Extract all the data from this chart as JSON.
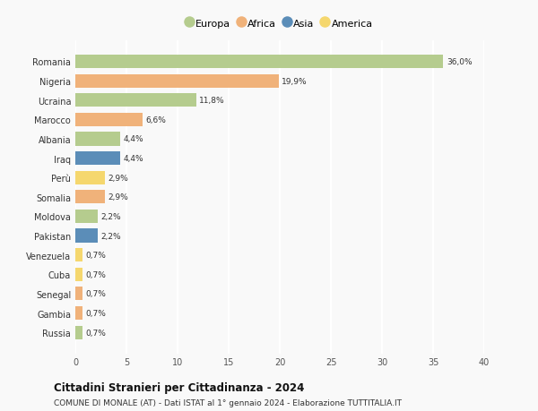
{
  "countries": [
    "Romania",
    "Nigeria",
    "Ucraina",
    "Marocco",
    "Albania",
    "Iraq",
    "Perù",
    "Somalia",
    "Moldova",
    "Pakistan",
    "Venezuela",
    "Cuba",
    "Senegal",
    "Gambia",
    "Russia"
  ],
  "values": [
    36.0,
    19.9,
    11.8,
    6.6,
    4.4,
    4.4,
    2.9,
    2.9,
    2.2,
    2.2,
    0.7,
    0.7,
    0.7,
    0.7,
    0.7
  ],
  "labels": [
    "36,0%",
    "19,9%",
    "11,8%",
    "6,6%",
    "4,4%",
    "4,4%",
    "2,9%",
    "2,9%",
    "2,2%",
    "2,2%",
    "0,7%",
    "0,7%",
    "0,7%",
    "0,7%",
    "0,7%"
  ],
  "continents": [
    "Europa",
    "Africa",
    "Europa",
    "Africa",
    "Europa",
    "Asia",
    "America",
    "Africa",
    "Europa",
    "Asia",
    "America",
    "America",
    "Africa",
    "Africa",
    "Europa"
  ],
  "colors": {
    "Europa": "#b5cc8e",
    "Africa": "#f0b27a",
    "Asia": "#5b8db8",
    "America": "#f5d76e"
  },
  "legend_order": [
    "Europa",
    "Africa",
    "Asia",
    "America"
  ],
  "xlim": [
    0,
    40
  ],
  "xticks": [
    0,
    5,
    10,
    15,
    20,
    25,
    30,
    35,
    40
  ],
  "title": "Cittadini Stranieri per Cittadinanza - 2024",
  "subtitle": "COMUNE DI MONALE (AT) - Dati ISTAT al 1° gennaio 2024 - Elaborazione TUTTITALIA.IT",
  "background_color": "#f9f9f9",
  "grid_color": "#ffffff",
  "bar_height": 0.7
}
